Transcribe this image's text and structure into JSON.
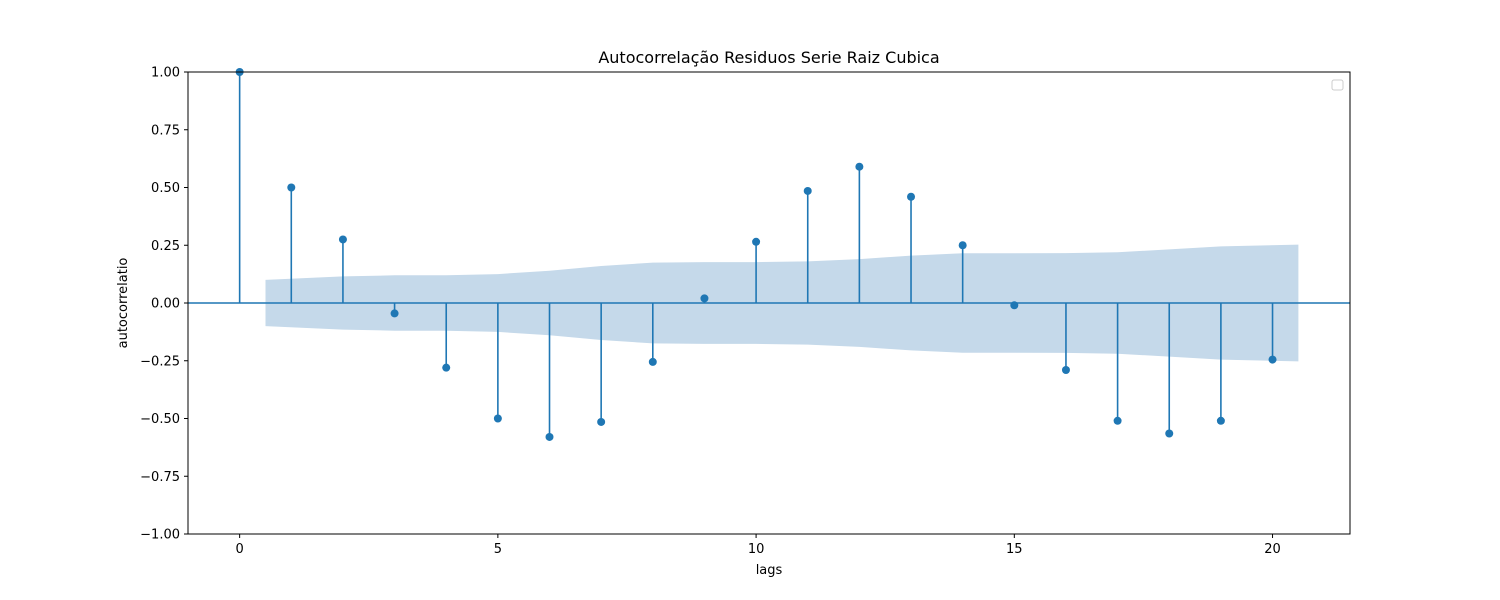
{
  "chart_data": {
    "type": "stem",
    "title": "Autocorrelação Residuos Serie Raiz Cubica",
    "xlabel": "lags",
    "ylabel": "autocorrelatio",
    "xlim": [
      -1,
      21.5
    ],
    "ylim": [
      -1.0,
      1.0
    ],
    "xticks": [
      0,
      5,
      10,
      15,
      20
    ],
    "yticks": [
      1.0,
      0.75,
      0.5,
      0.25,
      0.0,
      -0.25,
      -0.5,
      -0.75,
      -1.0
    ],
    "ytick_labels": [
      "1.00",
      "0.75",
      "0.50",
      "0.25",
      "0.00",
      "−0.25",
      "−0.50",
      "−0.75",
      "−1.00"
    ],
    "lags": [
      0,
      1,
      2,
      3,
      4,
      5,
      6,
      7,
      8,
      9,
      10,
      11,
      12,
      13,
      14,
      15,
      16,
      17,
      18,
      19,
      20
    ],
    "values": [
      1.0,
      0.5,
      0.275,
      -0.045,
      -0.28,
      -0.5,
      -0.58,
      -0.515,
      -0.255,
      0.02,
      0.265,
      0.485,
      0.59,
      0.46,
      0.25,
      -0.01,
      -0.29,
      -0.51,
      -0.565,
      -0.51,
      -0.245
    ],
    "confidence_band": {
      "x_start": 0.5,
      "x_end": 20.5,
      "lags": [
        1,
        2,
        3,
        4,
        5,
        6,
        7,
        8,
        9,
        10,
        11,
        12,
        13,
        14,
        15,
        16,
        17,
        18,
        19,
        20
      ],
      "upper": [
        0.1,
        0.115,
        0.12,
        0.12,
        0.125,
        0.14,
        0.16,
        0.175,
        0.177,
        0.177,
        0.18,
        0.19,
        0.205,
        0.215,
        0.215,
        0.216,
        0.22,
        0.232,
        0.245,
        0.253
      ]
    },
    "colors": {
      "stem": "#1f77b4",
      "band": "#c5d9ea",
      "baseline": "#1f77b4"
    },
    "legend": {
      "placement": "top-right",
      "entries": []
    },
    "grid": false
  }
}
